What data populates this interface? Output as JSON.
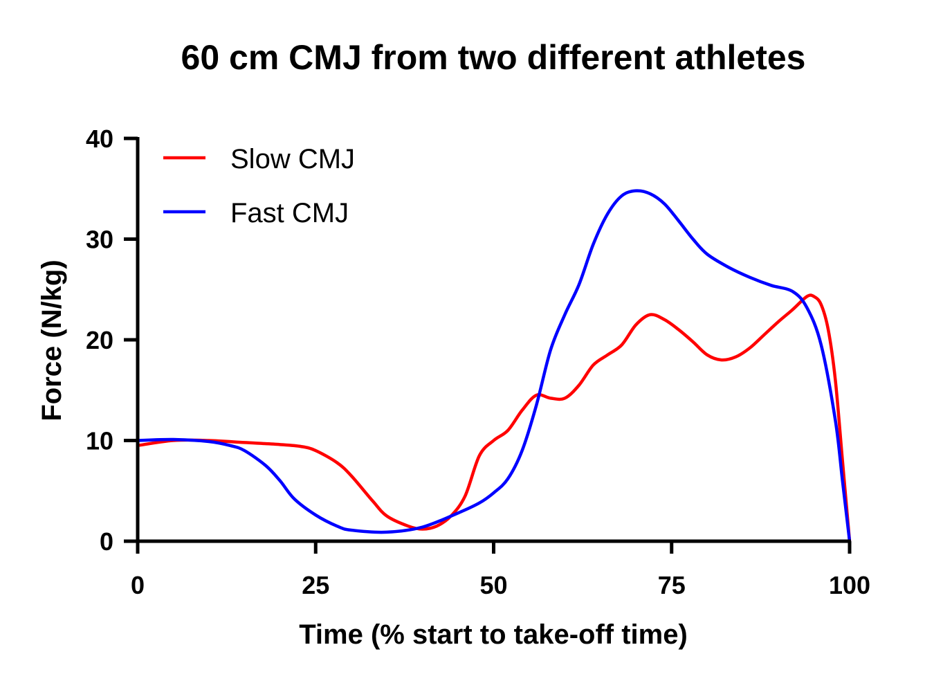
{
  "chart_data": {
    "type": "line",
    "title": "60 cm CMJ from two different athletes",
    "xlabel": "Time (% start to take-off time)",
    "ylabel": "Force (N/kg)",
    "xlim": [
      0,
      100
    ],
    "ylim": [
      0,
      40
    ],
    "xticks": [
      "0",
      "25",
      "50",
      "75",
      "100"
    ],
    "yticks": [
      "0",
      "10",
      "20",
      "30",
      "40"
    ],
    "grid": false,
    "legend_position": "top-left",
    "series": [
      {
        "name": "Slow CMJ",
        "color": "#ff0000",
        "x": [
          0,
          5,
          10,
          15,
          20,
          23,
          25,
          28,
          30,
          33,
          35,
          38,
          40,
          42,
          44,
          46,
          48,
          50,
          52,
          54,
          56,
          58,
          60,
          62,
          64,
          66,
          68,
          70,
          72,
          74,
          76,
          78,
          80,
          82,
          84,
          86,
          88,
          90,
          92,
          94,
          95,
          96,
          97,
          98,
          99,
          100
        ],
        "y": [
          9.5,
          10.0,
          10.0,
          9.8,
          9.6,
          9.4,
          9.0,
          7.8,
          6.5,
          4.0,
          2.5,
          1.5,
          1.2,
          1.5,
          2.5,
          4.5,
          8.5,
          10.0,
          11.0,
          13.0,
          14.5,
          14.2,
          14.2,
          15.5,
          17.5,
          18.5,
          19.5,
          21.5,
          22.5,
          22.0,
          21.0,
          19.8,
          18.5,
          18.0,
          18.3,
          19.2,
          20.5,
          21.8,
          23.0,
          24.3,
          24.3,
          23.5,
          21.0,
          16.0,
          8.0,
          0
        ]
      },
      {
        "name": "Fast CMJ",
        "color": "#0000ff",
        "x": [
          0,
          5,
          10,
          13,
          15,
          18,
          20,
          22,
          25,
          28,
          30,
          35,
          40,
          45,
          48,
          50,
          52,
          54,
          56,
          58,
          60,
          62,
          64,
          66,
          68,
          70,
          72,
          74,
          76,
          78,
          80,
          83,
          86,
          89,
          92,
          94,
          96,
          98,
          99,
          100
        ],
        "y": [
          10.0,
          10.1,
          9.9,
          9.5,
          9.0,
          7.5,
          6.0,
          4.2,
          2.6,
          1.5,
          1.1,
          0.9,
          1.4,
          2.8,
          3.8,
          4.8,
          6.2,
          9.0,
          13.5,
          19.0,
          22.5,
          25.5,
          29.5,
          32.5,
          34.3,
          34.8,
          34.5,
          33.5,
          31.8,
          30.0,
          28.5,
          27.2,
          26.2,
          25.4,
          24.8,
          23.2,
          19.5,
          12.0,
          6.0,
          0
        ]
      }
    ]
  }
}
